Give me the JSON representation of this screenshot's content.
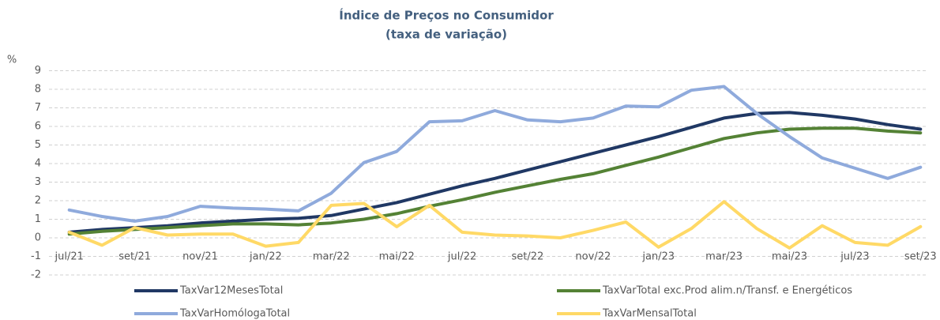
{
  "chart_data": {
    "type": "line",
    "title": "Índice de Preços no Consumidor",
    "subtitle": "(taxa de variação)",
    "y_label": "%",
    "categories": [
      "jul/21",
      null,
      "set/21",
      null,
      "nov/21",
      null,
      "jan/22",
      null,
      "mar/22",
      null,
      "mai/22",
      null,
      "jul/22",
      null,
      "set/22",
      null,
      "nov/22",
      null,
      "jan/23",
      null,
      "mar/23",
      null,
      "mai/23",
      null,
      "jul/23",
      null,
      "set/23"
    ],
    "series": [
      {
        "name": "TaxVar12MesesTotal",
        "color": "#203864",
        "values": [
          0.3,
          0.45,
          0.55,
          0.65,
          0.8,
          0.9,
          1.0,
          1.05,
          1.2,
          1.55,
          1.9,
          2.35,
          2.8,
          3.2,
          3.65,
          4.1,
          4.55,
          5.0,
          5.45,
          5.95,
          6.45,
          6.7,
          6.75,
          6.6,
          6.4,
          6.1,
          5.85
        ]
      },
      {
        "name": "TaxVarTotal exc.Prod alim.n/Transf. e Energéticos",
        "color": "#548235",
        "values": [
          0.2,
          0.35,
          0.45,
          0.55,
          0.65,
          0.75,
          0.75,
          0.7,
          0.8,
          1.0,
          1.3,
          1.7,
          2.05,
          2.45,
          2.8,
          3.15,
          3.45,
          3.9,
          4.35,
          4.85,
          5.35,
          5.65,
          5.85,
          5.9,
          5.9,
          5.75,
          5.65
        ]
      },
      {
        "name": "TaxVarHomólogaTotal",
        "color": "#8faadc",
        "values": [
          1.5,
          1.15,
          0.9,
          1.15,
          1.7,
          1.6,
          1.55,
          1.45,
          2.4,
          4.05,
          4.65,
          6.25,
          6.3,
          6.85,
          6.35,
          6.25,
          6.45,
          7.1,
          7.05,
          7.95,
          8.15,
          6.7,
          5.45,
          4.3,
          3.75,
          3.2,
          3.8
        ]
      },
      {
        "name": "TaxVarMensalTotal",
        "color": "#ffd966",
        "values": [
          0.3,
          -0.4,
          0.55,
          0.15,
          0.2,
          0.2,
          -0.45,
          -0.25,
          1.75,
          1.85,
          0.6,
          1.75,
          0.3,
          0.15,
          0.1,
          0.0,
          0.4,
          0.85,
          -0.5,
          0.5,
          1.95,
          0.5,
          -0.55,
          0.65,
          -0.25,
          -0.4,
          0.6
        ]
      }
    ],
    "ylim": [
      -2,
      9
    ],
    "yticks": [
      -2,
      -1,
      0,
      1,
      2,
      3,
      4,
      5,
      6,
      7,
      8,
      9
    ],
    "grid": true
  }
}
